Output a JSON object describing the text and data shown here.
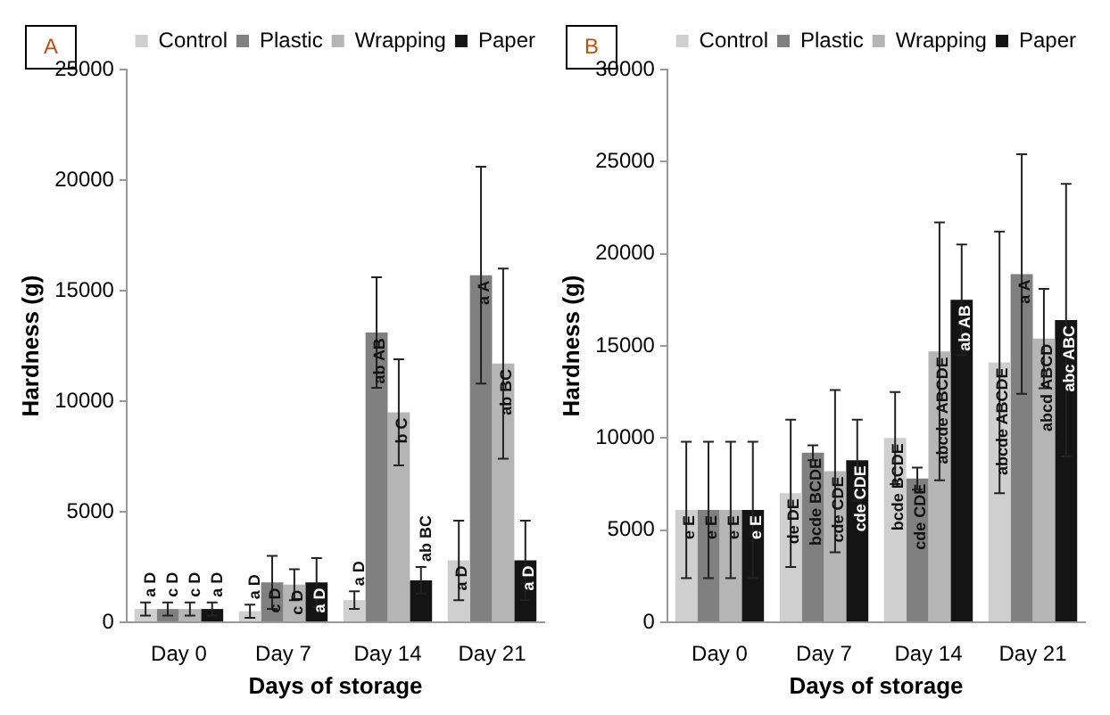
{
  "chart_data": [
    {
      "type": "bar",
      "title": "A",
      "xlabel": "Days of storage",
      "ylabel": "Hardness (g)",
      "categories": [
        "Day 0",
        "Day 7",
        "Day 14",
        "Day 21"
      ],
      "ylim": [
        0,
        25000
      ],
      "yticks": [
        0,
        5000,
        10000,
        15000,
        20000,
        25000
      ],
      "grid": false,
      "legend": "top",
      "series": [
        {
          "name": "Control",
          "color": "#cfcfcf",
          "values": [
            600,
            500,
            1000,
            2800
          ],
          "errors": [
            300,
            300,
            400,
            1800
          ],
          "value_labels": [
            "a D",
            "a D",
            "a D",
            "a D"
          ]
        },
        {
          "name": "Plastic",
          "color": "#808080",
          "values": [
            600,
            1800,
            13100,
            15700
          ],
          "errors": [
            300,
            1200,
            2500,
            4900
          ],
          "value_labels": [
            "c D",
            "c D",
            "ab AB",
            "a A"
          ]
        },
        {
          "name": "Wrapping",
          "color": "#b5b5b5",
          "values": [
            600,
            1700,
            9500,
            11700
          ],
          "errors": [
            300,
            700,
            2400,
            4300
          ],
          "value_labels": [
            "c D",
            "c D",
            "b C",
            "ab BC"
          ]
        },
        {
          "name": "Paper",
          "color": "#141414",
          "values": [
            600,
            1800,
            1900,
            2800
          ],
          "errors": [
            300,
            1100,
            600,
            1800
          ],
          "value_labels": [
            "a D",
            "a D",
            "ab BC",
            "a D"
          ]
        }
      ]
    },
    {
      "type": "bar",
      "title": "B",
      "xlabel": "Days of storage",
      "ylabel": "Hardness (g)",
      "categories": [
        "Day 0",
        "Day 7",
        "Day 14",
        "Day 21"
      ],
      "ylim": [
        0,
        30000
      ],
      "yticks": [
        0,
        5000,
        10000,
        15000,
        20000,
        25000,
        30000
      ],
      "grid": false,
      "legend": "top",
      "series": [
        {
          "name": "Control",
          "color": "#cfcfcf",
          "values": [
            6100,
            7000,
            10000,
            14100
          ],
          "errors": [
            3700,
            4000,
            2500,
            7100
          ],
          "value_labels": [
            "e E",
            "de DE",
            "bcde BCDE",
            "abcde ABCDE"
          ]
        },
        {
          "name": "Plastic",
          "color": "#808080",
          "values": [
            6100,
            9200,
            7800,
            18900
          ],
          "errors": [
            3700,
            400,
            600,
            6500
          ],
          "value_labels": [
            "e E",
            "bcde BCDE",
            "cde CDE",
            "a A"
          ]
        },
        {
          "name": "Wrapping",
          "color": "#b5b5b5",
          "values": [
            6100,
            8200,
            14700,
            15400
          ],
          "errors": [
            3700,
            4400,
            7000,
            2700
          ],
          "value_labels": [
            "e E",
            "cde CDE",
            "abcde ABCDE",
            "abcd ABCD"
          ]
        },
        {
          "name": "Paper",
          "color": "#141414",
          "values": [
            6100,
            8800,
            17500,
            16400
          ],
          "errors": [
            3700,
            2200,
            3000,
            7400
          ],
          "value_labels": [
            "e E",
            "cde CDE",
            "ab AB",
            "abc ABC"
          ]
        }
      ]
    }
  ]
}
